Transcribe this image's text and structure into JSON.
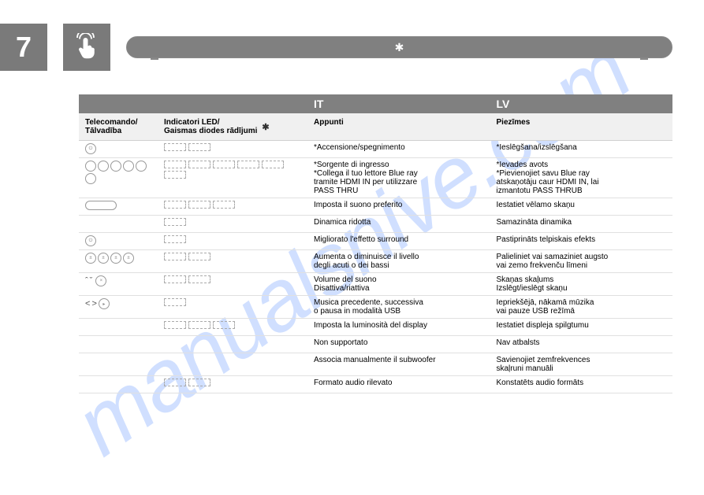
{
  "section_number": "7",
  "watermark": "manualsnive.com",
  "lang_headers": {
    "it": "IT",
    "lv": "LV"
  },
  "sub_headers": {
    "remote": "Telecomando/\nTālvadība",
    "led": "Indicatori LED/\nGaismas diodes rādījumi",
    "it": "Appunti",
    "lv": "Piezīmes"
  },
  "rows": [
    {
      "remote": {
        "type": "single"
      },
      "led_count": 2,
      "it": "*Accensione/spegnimento",
      "lv": "*Ieslēgšana/izslēgšana"
    },
    {
      "remote": {
        "type": "grid6"
      },
      "led_count": 6,
      "it": "*Sorgente di ingresso\n*Collega il tuo lettore Blue ray\n  tramite HDMI IN per utilizzare\n  PASS THRU",
      "lv": "*Ievades avots\n*Pievienojiet savu Blue ray\n  atskaņotāju caur HDMI IN, lai\n  izmantotu PASS THRUB"
    },
    {
      "remote": {
        "type": "wide3"
      },
      "led_count": 3,
      "it": "Imposta il suono preferito",
      "lv": "Iestatiet vēlamo skaņu"
    },
    {
      "remote": {
        "type": "none"
      },
      "led_count": 1,
      "it": "Dinamica ridotta",
      "lv": "Samazināta dinamika"
    },
    {
      "remote": {
        "type": "single"
      },
      "led_count": 1,
      "it": "Migliorato l'effetto surround",
      "lv": "Pastiprināts telpiskais efekts"
    },
    {
      "remote": {
        "type": "four"
      },
      "led_count": 2,
      "it": "Aumenta o diminuisce il livello\ndegli acuti o dei bassi",
      "lv": "Palieliniet vai samaziniet augsto\nvai zemo frekvenču līmeni"
    },
    {
      "remote": {
        "type": "arrows"
      },
      "led_count": 2,
      "it": "Volume del suono\nDisattiva/riattiva",
      "lv": "Skaņas skaļums\nIzslēgt/ieslēgt skaņu"
    },
    {
      "remote": {
        "type": "prevnext"
      },
      "led_count": 1,
      "it": "Musica precedente, successiva\no pausa in modalità USB",
      "lv": "Iepriekšējā, nākamā mūzika\nvai pauze USB režīmā"
    },
    {
      "remote": {
        "type": "none"
      },
      "led_count": 3,
      "it": "Imposta la luminosità del display",
      "lv": "Iestatiet displeja spilgtumu"
    },
    {
      "remote": {
        "type": "none"
      },
      "led_count": 0,
      "it": "Non supportato",
      "lv": "Nav atbalsts"
    },
    {
      "remote": {
        "type": "none"
      },
      "led_count": 0,
      "it": "Associa manualmente il subwoofer",
      "lv": "Savienojiet zemfrekvences\nskaļruni manuāli"
    },
    {
      "remote": {
        "type": "none"
      },
      "led_count": 2,
      "it": "Formato audio rilevato",
      "lv": "Konstatēts audio formāts"
    }
  ]
}
